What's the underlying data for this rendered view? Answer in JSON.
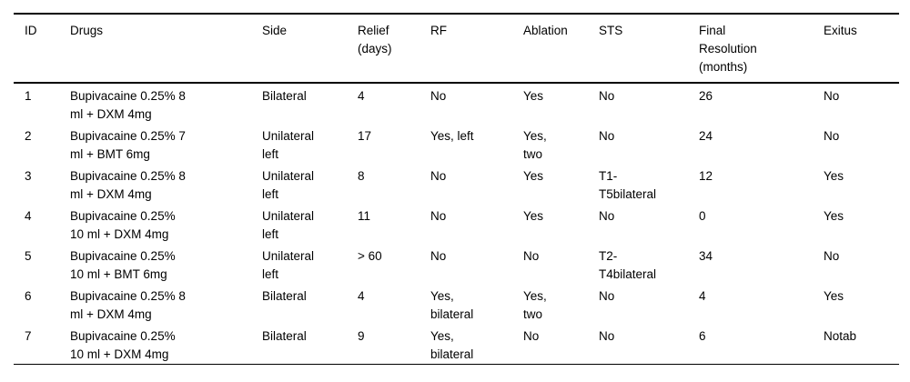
{
  "table": {
    "columns": [
      {
        "key": "id",
        "label": "ID"
      },
      {
        "key": "drugs",
        "label": "Drugs"
      },
      {
        "key": "side",
        "label": "Side"
      },
      {
        "key": "relief_days",
        "label": "Relief\n(days)"
      },
      {
        "key": "rf",
        "label": "RF"
      },
      {
        "key": "ablation",
        "label": "Ablation"
      },
      {
        "key": "sts",
        "label": "STS"
      },
      {
        "key": "final_resolution_months",
        "label": "Final\nResolution\n(months)"
      },
      {
        "key": "exitus",
        "label": "Exitus"
      }
    ],
    "rows": [
      {
        "id": "1",
        "drugs": "Bupivacaine 0.25% 8\nml + DXM 4mg",
        "side": "Bilateral",
        "relief_days": "4",
        "rf": "No",
        "ablation": "Yes",
        "sts": "No",
        "final_resolution_months": "26",
        "exitus": "No"
      },
      {
        "id": "2",
        "drugs": "Bupivacaine 0.25% 7\nml + BMT 6mg",
        "side": "Unilateral\nleft",
        "relief_days": "17",
        "rf": "Yes, left",
        "ablation": "Yes,\ntwo",
        "sts": "No",
        "final_resolution_months": "24",
        "exitus": "No"
      },
      {
        "id": "3",
        "drugs": "Bupivacaine 0.25% 8\nml + DXM 4mg",
        "side": "Unilateral\nleft",
        "relief_days": "8",
        "rf": "No",
        "ablation": "Yes",
        "sts": "T1-\nT5bilateral",
        "final_resolution_months": "12",
        "exitus": "Yes"
      },
      {
        "id": "4",
        "drugs": "Bupivacaine 0.25%\n10 ml + DXM 4mg",
        "side": "Unilateral\nleft",
        "relief_days": "11",
        "rf": "No",
        "ablation": "Yes",
        "sts": "No",
        "final_resolution_months": "0",
        "exitus": "Yes"
      },
      {
        "id": "5",
        "drugs": "Bupivacaine 0.25%\n10 ml + BMT 6mg",
        "side": "Unilateral\nleft",
        "relief_days": "> 60",
        "rf": "No",
        "ablation": "No",
        "sts": "T2-\nT4bilateral",
        "final_resolution_months": "34",
        "exitus": "No"
      },
      {
        "id": "6",
        "drugs": "Bupivacaine 0.25% 8\nml + DXM 4mg",
        "side": "Bilateral",
        "relief_days": "4",
        "rf": "Yes,\nbilateral",
        "ablation": "Yes,\ntwo",
        "sts": "No",
        "final_resolution_months": "4",
        "exitus": "Yes"
      },
      {
        "id": "7",
        "drugs": "Bupivacaine 0.25%\n10 ml + DXM 4mg",
        "side": "Bilateral",
        "relief_days": "9",
        "rf": "Yes,\nbilateral",
        "ablation": "No",
        "sts": "No",
        "final_resolution_months": "6",
        "exitus": "Notab"
      }
    ],
    "colors": {
      "rule": "#000000",
      "text": "#000000",
      "background": "#ffffff"
    }
  }
}
